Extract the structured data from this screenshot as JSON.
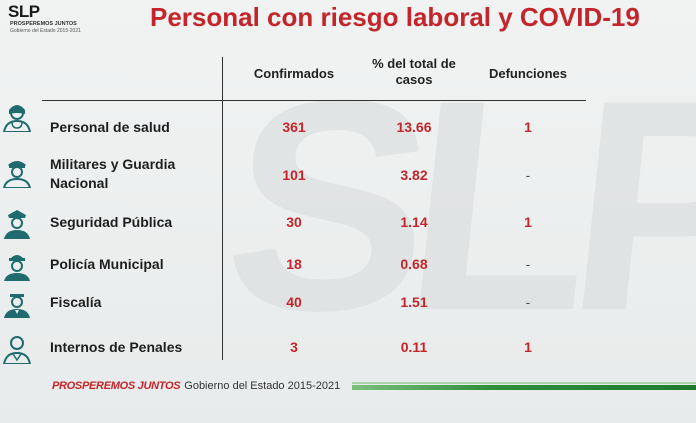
{
  "logo": {
    "mark": "SLP",
    "tagline": "PROSPEREMOS JUNTOS",
    "subtitle": "Gobierno del Estado 2015-2021"
  },
  "title": "Personal con riesgo laboral y COVID-19",
  "watermark": "SLP",
  "table": {
    "headers": {
      "confirmed": "Confirmados",
      "percent_line1": "% del total de",
      "percent_line2": "casos",
      "deaths": "Defunciones"
    },
    "rows": [
      {
        "label": "Personal de salud",
        "confirmed": "361",
        "percent": "13.66",
        "deaths": "1",
        "icon": "health-worker-icon"
      },
      {
        "label_line1": "Militares y Guardia",
        "label_line2": "Nacional",
        "confirmed": "101",
        "percent": "3.82",
        "deaths": "-",
        "icon": "soldier-icon"
      },
      {
        "label": "Seguridad Pública",
        "confirmed": "30",
        "percent": "1.14",
        "deaths": "1",
        "icon": "police-officer-icon"
      },
      {
        "label": "Policía Municipal",
        "confirmed": "18",
        "percent": "0.68",
        "deaths": "-",
        "icon": "municipal-police-icon"
      },
      {
        "label": "Fiscalía",
        "confirmed": "40",
        "percent": "1.51",
        "deaths": "-",
        "icon": "prosecutor-icon"
      },
      {
        "label": "Internos de Penales",
        "confirmed": "3",
        "percent": "0.11",
        "deaths": "1",
        "icon": "inmate-icon"
      }
    ]
  },
  "footer": {
    "brand": "PROSPEREMOS JUNTOS",
    "government": "Gobierno del Estado 2015-2021"
  },
  "colors": {
    "accent_red": "#c4252a",
    "icon_teal": "#1f6b6e",
    "footer_green": "#2f8f3a"
  }
}
